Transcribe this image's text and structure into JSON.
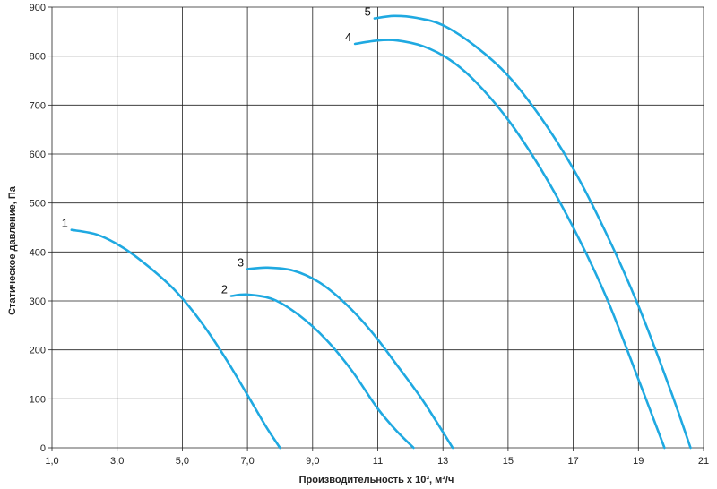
{
  "chart_data": {
    "type": "line",
    "xlabel": "Производительность x 10³, м³/ч",
    "ylabel": "Статическое давление, Па",
    "xlim": [
      1.0,
      21.0
    ],
    "ylim": [
      0,
      900
    ],
    "x_ticks": [
      1.0,
      3.0,
      5.0,
      7.0,
      9.0,
      11.0,
      13.0,
      15.0,
      17.0,
      19.0,
      21.0
    ],
    "x_tick_labels": [
      "1,0",
      "3,0",
      "5,0",
      "7,0",
      "9,0",
      "11",
      "13",
      "15",
      "17",
      "19",
      "21"
    ],
    "y_ticks": [
      0,
      100,
      200,
      300,
      400,
      500,
      600,
      700,
      800,
      900
    ],
    "y_tick_labels": [
      "0",
      "100",
      "200",
      "300",
      "400",
      "500",
      "600",
      "700",
      "800",
      "900"
    ],
    "grid": true,
    "line_color": "#1fa9e1",
    "series": [
      {
        "name": "1",
        "x": [
          1.6,
          2.4,
          3.2,
          4.0,
          4.8,
          5.6,
          6.4,
          7.2,
          7.6,
          8.0
        ],
        "y": [
          445,
          435,
          408,
          368,
          320,
          255,
          175,
          85,
          40,
          0
        ]
      },
      {
        "name": "2",
        "x": [
          6.5,
          7.0,
          7.8,
          8.6,
          9.4,
          10.2,
          11.0,
          11.6,
          12.1
        ],
        "y": [
          310,
          313,
          303,
          270,
          222,
          158,
          80,
          33,
          0
        ]
      },
      {
        "name": "3",
        "x": [
          7.0,
          7.6,
          8.4,
          9.2,
          10.0,
          10.8,
          11.6,
          12.4,
          13.3
        ],
        "y": [
          365,
          368,
          362,
          338,
          295,
          238,
          168,
          95,
          0
        ]
      },
      {
        "name": "4",
        "x": [
          10.3,
          11.0,
          11.6,
          12.4,
          13.2,
          14.0,
          15.0,
          16.0,
          17.0,
          18.0,
          19.0,
          19.8
        ],
        "y": [
          825,
          832,
          832,
          820,
          793,
          748,
          670,
          570,
          450,
          310,
          140,
          0
        ]
      },
      {
        "name": "5",
        "x": [
          10.9,
          11.5,
          12.2,
          13.0,
          14.0,
          15.0,
          16.0,
          17.0,
          18.0,
          19.0,
          20.0,
          20.6
        ],
        "y": [
          877,
          882,
          878,
          863,
          820,
          760,
          675,
          570,
          440,
          290,
          115,
          0
        ]
      }
    ]
  }
}
